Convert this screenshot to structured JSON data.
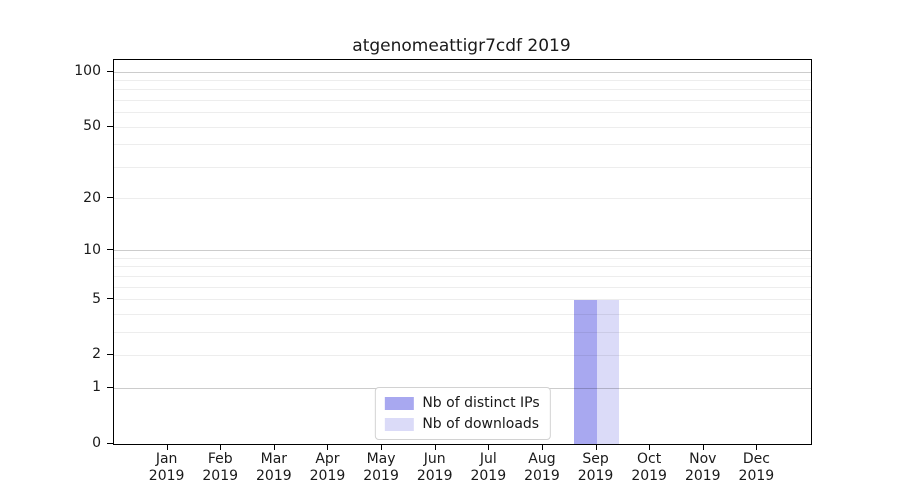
{
  "title": "atgenomeattigr7cdf 2019",
  "chart_data": {
    "type": "bar",
    "title": "atgenomeattigr7cdf 2019",
    "categories": [
      {
        "month": "Jan",
        "year": "2019"
      },
      {
        "month": "Feb",
        "year": "2019"
      },
      {
        "month": "Mar",
        "year": "2019"
      },
      {
        "month": "Apr",
        "year": "2019"
      },
      {
        "month": "May",
        "year": "2019"
      },
      {
        "month": "Jun",
        "year": "2019"
      },
      {
        "month": "Jul",
        "year": "2019"
      },
      {
        "month": "Aug",
        "year": "2019"
      },
      {
        "month": "Sep",
        "year": "2019"
      },
      {
        "month": "Oct",
        "year": "2019"
      },
      {
        "month": "Nov",
        "year": "2019"
      },
      {
        "month": "Dec",
        "year": "2019"
      }
    ],
    "series": [
      {
        "name": "Nb of distinct IPs",
        "color": "#a8a8f0",
        "values": [
          0,
          0,
          0,
          0,
          0,
          0,
          0,
          0,
          5,
          0,
          0,
          0
        ]
      },
      {
        "name": "Nb of downloads",
        "color": "#dbdbf8",
        "values": [
          0,
          0,
          0,
          0,
          0,
          0,
          0,
          0,
          5,
          0,
          0,
          0
        ]
      }
    ],
    "yscale": "log1p",
    "yticks": [
      0,
      1,
      2,
      5,
      10,
      20,
      50,
      100
    ],
    "ylim": [
      0,
      117
    ],
    "xlabel": "",
    "ylabel": "",
    "grid": {
      "major": [
        1,
        10,
        100
      ],
      "minor": [
        2,
        3,
        4,
        5,
        6,
        7,
        8,
        9,
        20,
        30,
        40,
        50,
        60,
        70,
        80,
        90
      ]
    },
    "legend_position": "lower center"
  },
  "colors": {
    "background": "#ffffff",
    "bar_distinct_ips": "#a8a8f0",
    "bar_downloads": "#dbdbf8",
    "axis": "#000000",
    "text": "#1a1a1a"
  }
}
